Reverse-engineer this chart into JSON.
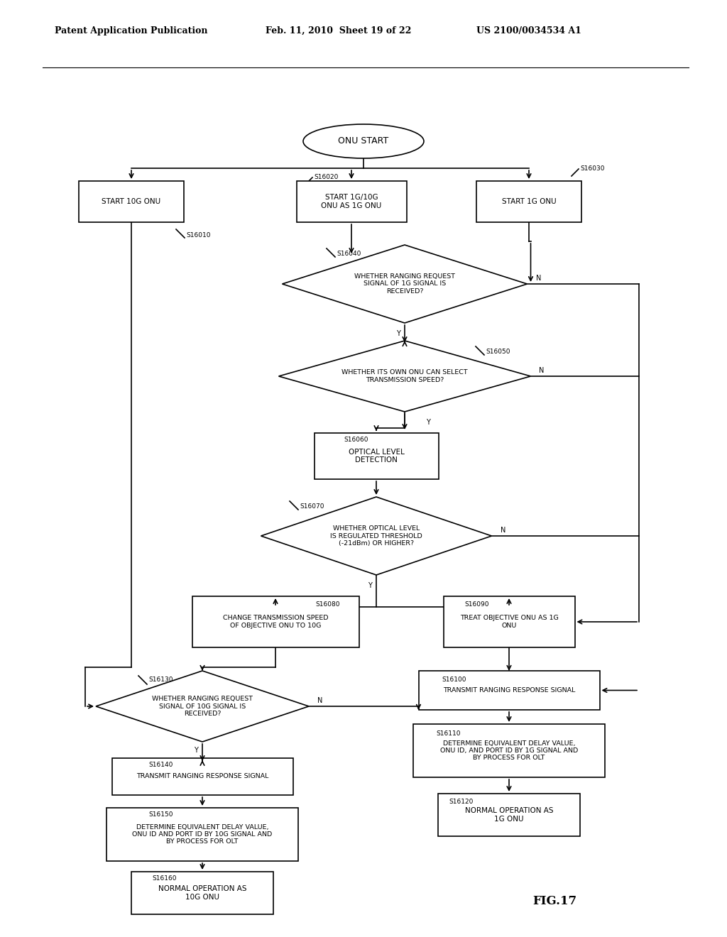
{
  "bg_color": "#ffffff",
  "header_left": "Patent Application Publication",
  "header_mid": "Feb. 11, 2010  Sheet 19 of 22",
  "header_right": "US 2100/0034534 A1",
  "fig_label": "FIG.17"
}
